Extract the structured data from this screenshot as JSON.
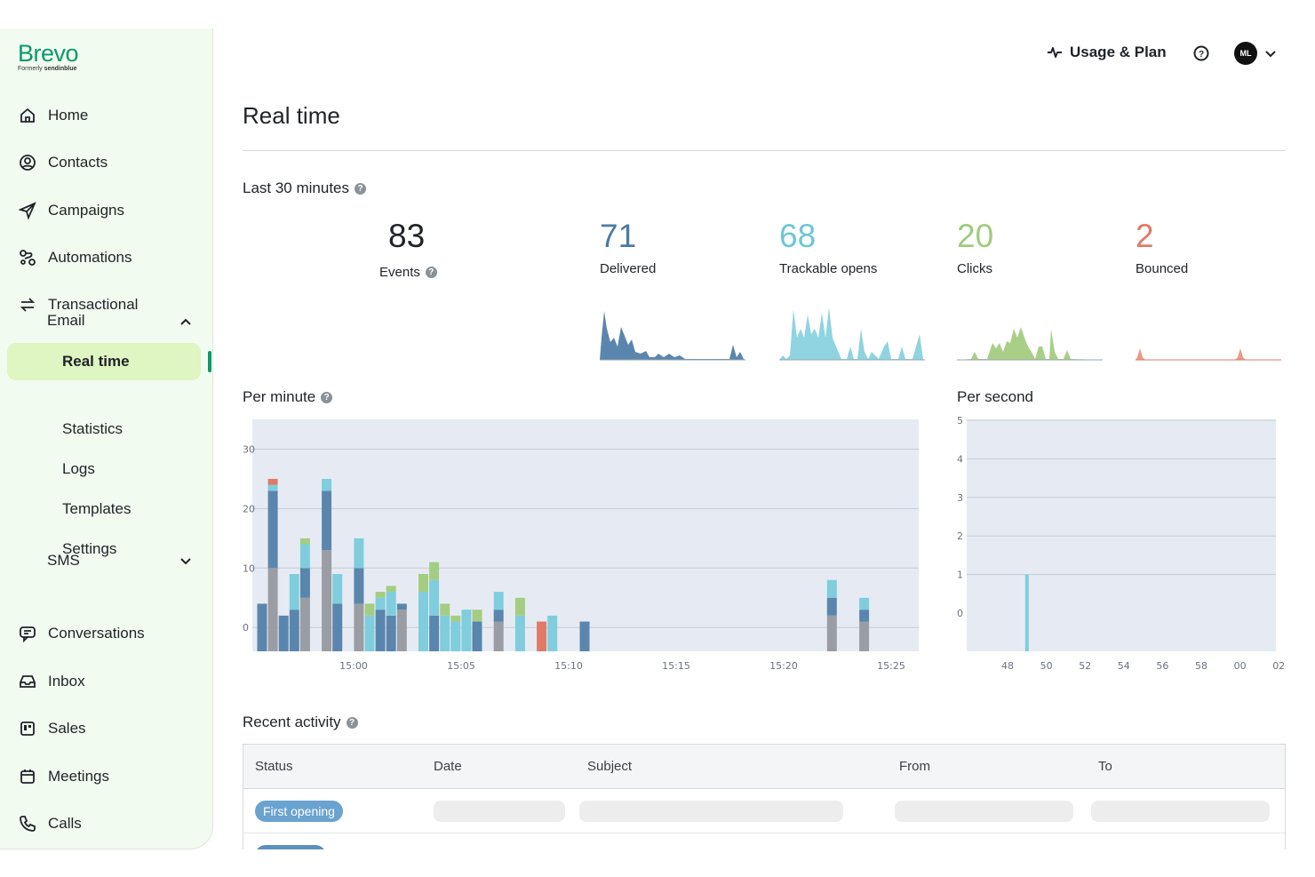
{
  "brand": {
    "name": "Brevo",
    "formerly_prefix": "Formerly",
    "formerly_name": "sendinblue"
  },
  "sidebar": {
    "items": [
      {
        "label": "Home",
        "icon": "home-icon"
      },
      {
        "label": "Contacts",
        "icon": "contacts-icon"
      },
      {
        "label": "Campaigns",
        "icon": "send-icon"
      },
      {
        "label": "Automations",
        "icon": "automations-icon"
      },
      {
        "label": "Transactional",
        "icon": "transactional-icon"
      },
      {
        "label": "Conversations",
        "icon": "chat-icon"
      },
      {
        "label": "Inbox",
        "icon": "inbox-icon"
      },
      {
        "label": "Sales",
        "icon": "sales-icon"
      },
      {
        "label": "Meetings",
        "icon": "calendar-icon"
      },
      {
        "label": "Calls",
        "icon": "phone-icon"
      }
    ],
    "email_label": "Email",
    "email_sub": [
      "Real time",
      "Statistics",
      "Logs",
      "Templates",
      "Settings"
    ],
    "active_sub": "Real time",
    "sms_label": "SMS"
  },
  "header": {
    "usage_label": "Usage & Plan",
    "avatar_initials": "ML"
  },
  "page": {
    "title": "Real time"
  },
  "overview": {
    "label": "Last 30 minutes",
    "stats": [
      {
        "value": "83",
        "label": "Events",
        "color": "#1f2328"
      },
      {
        "value": "71",
        "label": "Delivered",
        "color": "#4a7aa6"
      },
      {
        "value": "68",
        "label": "Trackable opens",
        "color": "#6cc6d8"
      },
      {
        "value": "20",
        "label": "Clicks",
        "color": "#9fcb7e"
      },
      {
        "value": "2",
        "label": "Bounced",
        "color": "#e07a66"
      }
    ]
  },
  "per_minute": {
    "label": "Per minute"
  },
  "per_second": {
    "label": "Per second"
  },
  "recent": {
    "label": "Recent activity",
    "columns": [
      "Status",
      "Date",
      "Subject",
      "From",
      "To"
    ],
    "rows": [
      {
        "status": "First opening"
      }
    ]
  },
  "colors": {
    "gray": "#9a9da3",
    "delivered": "#5a86ae",
    "opens": "#7fcddd",
    "clicks": "#a5cc83",
    "bounced": "#e07a66"
  },
  "chart_data": [
    {
      "type": "bar",
      "title": "Per minute",
      "stacked": true,
      "x_tick_labels": [
        "15:00",
        "15:05",
        "15:10",
        "15:15",
        "15:20",
        "15:25"
      ],
      "y_ticks": [
        0,
        10,
        20,
        30
      ],
      "ylim": [
        -4,
        35
      ],
      "grid": true,
      "series": [
        {
          "key": "gray",
          "values": [
            0,
            10,
            0,
            0,
            5,
            0,
            13,
            0,
            0,
            4,
            0,
            0,
            0,
            3,
            0,
            0,
            0,
            0,
            0,
            0,
            0,
            0,
            1,
            0,
            0,
            0,
            0,
            0,
            0,
            0,
            0,
            0,
            0,
            0,
            0,
            0,
            0,
            0,
            0,
            0,
            0,
            0,
            0,
            0,
            0,
            0,
            0,
            0,
            0,
            0,
            0,
            0,
            0,
            2,
            0,
            0,
            1
          ]
        },
        {
          "key": "delivered",
          "values": [
            4,
            13,
            2,
            3,
            5,
            0,
            10,
            4,
            0,
            6,
            0,
            3,
            2,
            1,
            0,
            0,
            2,
            0,
            0,
            0,
            1,
            0,
            2,
            0,
            0,
            0,
            0,
            0,
            0,
            0,
            1,
            0,
            0,
            0,
            0,
            0,
            0,
            0,
            0,
            0,
            0,
            0,
            0,
            0,
            0,
            0,
            0,
            0,
            0,
            0,
            0,
            0,
            0,
            3,
            0,
            0,
            2
          ]
        },
        {
          "key": "opens",
          "values": [
            0,
            1,
            0,
            6,
            4,
            0,
            2,
            5,
            0,
            5,
            2,
            2,
            4,
            0,
            0,
            6,
            6,
            2,
            1,
            3,
            0,
            0,
            3,
            0,
            2,
            0,
            0,
            2,
            0,
            0,
            0,
            0,
            0,
            0,
            0,
            0,
            0,
            0,
            0,
            0,
            0,
            0,
            0,
            0,
            0,
            0,
            0,
            0,
            0,
            0,
            0,
            0,
            0,
            3,
            0,
            0,
            2
          ]
        },
        {
          "key": "clicks",
          "values": [
            0,
            0,
            0,
            0,
            1,
            0,
            0,
            0,
            0,
            0,
            2,
            1,
            1,
            0,
            0,
            3,
            3,
            2,
            1,
            0,
            2,
            0,
            0,
            0,
            3,
            0,
            0,
            0,
            0,
            0,
            0,
            0,
            0,
            0,
            0,
            0,
            0,
            0,
            0,
            0,
            0,
            0,
            0,
            0,
            0,
            0,
            0,
            0,
            0,
            0,
            0,
            0,
            0,
            0,
            0,
            0,
            0
          ]
        },
        {
          "key": "bounced",
          "values": [
            0,
            1,
            0,
            0,
            0,
            0,
            0,
            0,
            0,
            0,
            0,
            0,
            0,
            0,
            0,
            0,
            0,
            0,
            0,
            0,
            0,
            0,
            0,
            0,
            0,
            0,
            1,
            0,
            0,
            0,
            0,
            0,
            0,
            0,
            0,
            0,
            0,
            0,
            0,
            0,
            0,
            0,
            0,
            0,
            0,
            0,
            0,
            0,
            0,
            0,
            0,
            0,
            0,
            0,
            0,
            0,
            0
          ]
        }
      ]
    },
    {
      "type": "bar",
      "title": "Per second",
      "x_tick_labels": [
        "48",
        "50",
        "52",
        "54",
        "56",
        "58",
        "00",
        "02"
      ],
      "y_ticks": [
        0,
        1,
        2,
        3,
        4,
        5
      ],
      "grid": true,
      "series": [
        {
          "key": "opens",
          "points": [
            {
              "x": 49,
              "y": 1
            }
          ]
        }
      ]
    }
  ]
}
